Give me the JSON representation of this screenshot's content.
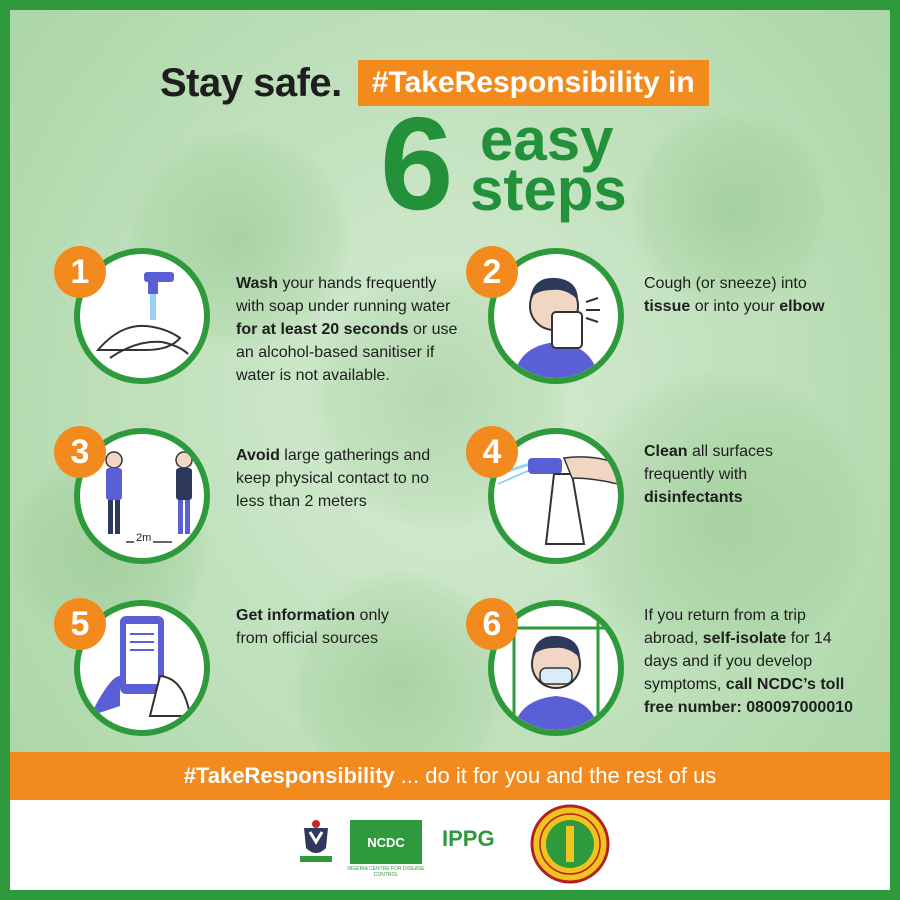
{
  "header": {
    "stay_safe": "Stay safe.",
    "tag": "#TakeResponsibility in",
    "number": "6",
    "easy": "easy",
    "steps": "steps"
  },
  "steps": [
    {
      "num": "1",
      "icon": "hand-washing-icon",
      "parts": [
        {
          "t": "Wash",
          "b": true
        },
        {
          "t": " your hands frequently with soap under running water ",
          "b": false
        },
        {
          "t": "for at least 20 seconds",
          "b": true
        },
        {
          "t": " or use an alcohol-based sanitiser if water is not available.",
          "b": false
        }
      ]
    },
    {
      "num": "2",
      "icon": "sneeze-tissue-icon",
      "parts": [
        {
          "t": "Cough (or sneeze) into ",
          "b": false
        },
        {
          "t": "tissue",
          "b": true
        },
        {
          "t": " or into your ",
          "b": false
        },
        {
          "t": "elbow",
          "b": true
        }
      ]
    },
    {
      "num": "3",
      "icon": "distancing-icon",
      "distance_label": "2m",
      "parts": [
        {
          "t": "Avoid",
          "b": true
        },
        {
          "t": " large gatherings and keep physical contact to no less than 2 meters",
          "b": false
        }
      ]
    },
    {
      "num": "4",
      "icon": "spray-bottle-icon",
      "parts": [
        {
          "t": "Clean",
          "b": true
        },
        {
          "t": " all surfaces frequently with ",
          "b": false
        },
        {
          "t": "disinfectants",
          "b": true
        }
      ]
    },
    {
      "num": "5",
      "icon": "phone-icon",
      "parts": [
        {
          "t": "Get information",
          "b": true
        },
        {
          "t": " only from official sources",
          "b": false
        }
      ]
    },
    {
      "num": "6",
      "icon": "self-isolate-icon",
      "parts": [
        {
          "t": "If you return from a trip abroad, ",
          "b": false
        },
        {
          "t": "self-isolate",
          "b": true
        },
        {
          "t": " for 14 days and if you develop symptoms, ",
          "b": false
        },
        {
          "t": "call NCDC’s toll free number: 080097000010",
          "b": true
        }
      ]
    }
  ],
  "footer_bar": {
    "tag": "#TakeResponsibility",
    "rest": "... do it for you and the rest of us"
  },
  "logos": {
    "ncdc": "NCDC",
    "ncdc_sub": "NIGERIA CENTRE FOR DISEASE CONTROL",
    "ippg": "IPPG",
    "coat_of_arms": "coat-of-arms-icon",
    "nnpc": "nnpc-seal-icon"
  },
  "colors": {
    "green": "#2e9a3c",
    "orange": "#f28a1e",
    "bg": "#c6e4c2"
  }
}
